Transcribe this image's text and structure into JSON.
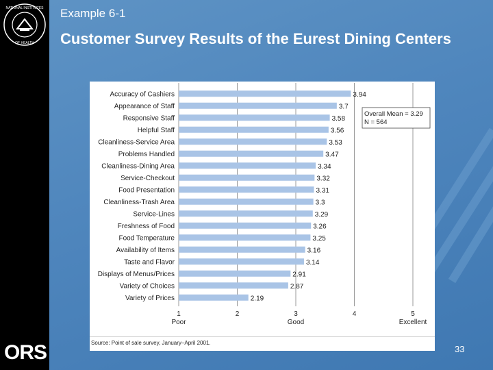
{
  "slide": {
    "subtitle": "Example 6-1",
    "title": "Customer Survey Results of the Eurest Dining Centers",
    "page_number": "33",
    "logo_text": "ORS",
    "seal_text": "NATIONAL INSTITUTES OF HEALTH",
    "source_note": "Source: Point of sale survey, January–April 2001."
  },
  "colors": {
    "background": "#4f86bd",
    "left_bar": "#000000",
    "bar_fill": "#a9c4e6",
    "gridline": "#9a9a9a"
  },
  "chart_data": {
    "type": "bar",
    "orientation": "horizontal",
    "categories": [
      "Accuracy of Cashiers",
      "Appearance of Staff",
      "Responsive Staff",
      "Helpful Staff",
      "Cleanliness-Service Area",
      "Problems Handled",
      "Cleanliness-Dining Area",
      "Service-Checkout",
      "Food Presentation",
      "Cleanliness-Trash Area",
      "Service-Lines",
      "Freshness of Food",
      "Food Temperature",
      "Availability of Items",
      "Taste and Flavor",
      "Displays of Menus/Prices",
      "Variety of Choices",
      "Variety of Prices"
    ],
    "values": [
      3.94,
      3.7,
      3.58,
      3.56,
      3.53,
      3.47,
      3.34,
      3.32,
      3.31,
      3.3,
      3.29,
      3.26,
      3.25,
      3.16,
      3.14,
      2.91,
      2.87,
      2.19
    ],
    "data_labels": [
      "3.94",
      "3.7",
      "3.58",
      "3.56",
      "3.53",
      "3.47",
      "3.34",
      "3.32",
      "3.31",
      "3.3",
      "3.29",
      "3.26",
      "3.25",
      "3.16",
      "3.14",
      "2.91",
      "2.87",
      "2.19"
    ],
    "xlim": [
      1,
      5
    ],
    "xticks": [
      1,
      2,
      3,
      4,
      5
    ],
    "tick_labels": [
      "1",
      "2",
      "3",
      "4",
      "5"
    ],
    "tick_sublabels": [
      "Poor",
      "",
      "Good",
      "",
      "Excellent"
    ],
    "annotation": [
      "Overall Mean = 3.29",
      "N = 564"
    ],
    "grid": true,
    "legend": "none"
  }
}
